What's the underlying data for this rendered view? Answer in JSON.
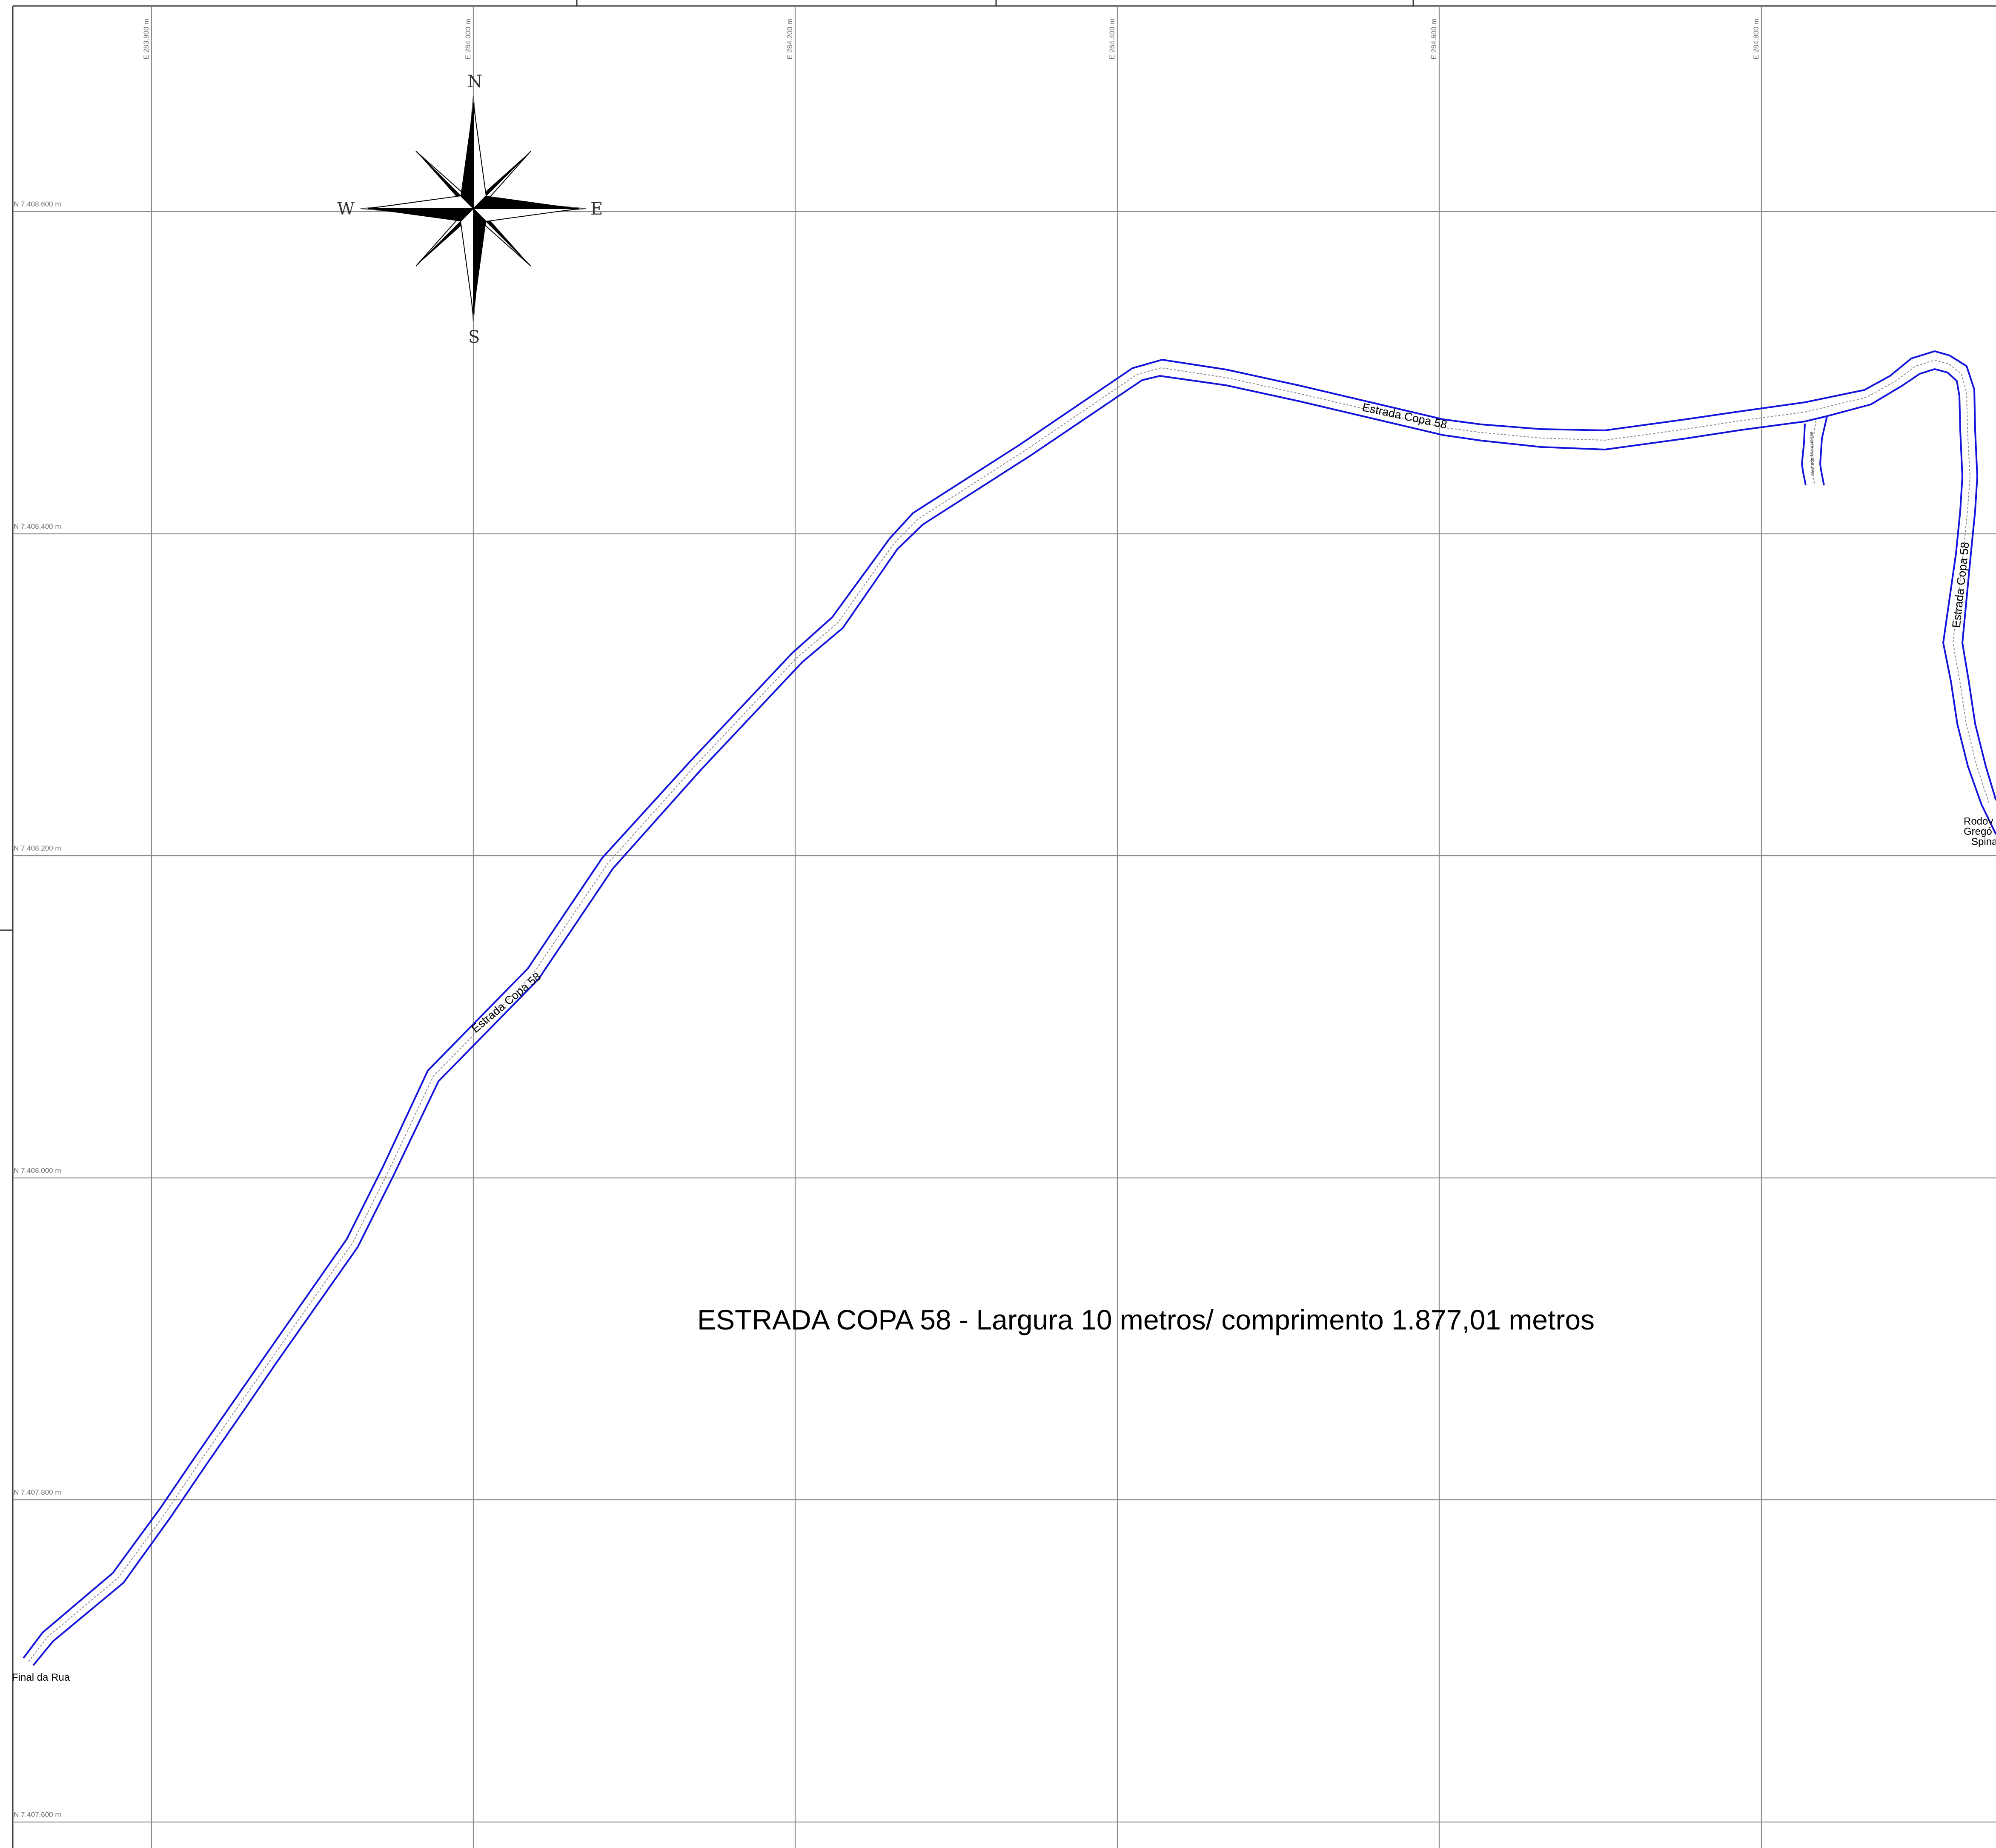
{
  "map": {
    "title": "ESTRADA COPA 58 - Largura 10 metros/ comprimento 1.877,01 metros",
    "easting_labels": [
      "E 283.800 m",
      "E 284.000 m",
      "E 284.200 m",
      "E 284.400 m",
      "E 284.600 m",
      "E 284.800 m"
    ],
    "northing_labels": [
      "N 7.408.600 m",
      "N 7.408.400 m",
      "N 7.408.200 m",
      "N 7.408.000 m",
      "N 7.407.800 m",
      "N 7.407.600 m"
    ],
    "compass": {
      "north": "N",
      "south": "S",
      "east": "E",
      "west": "W"
    },
    "road_labels": {
      "diagonal": "Estrada Copa 58",
      "top": "Estrada Copa 58",
      "right": "Estrada Copa 58",
      "side_street": "Alameda Mangueiras"
    },
    "places": {
      "end_of_road": "Final da Rua",
      "highway": [
        "Rodov",
        "Gregó",
        "Spina"
      ]
    },
    "colors": {
      "road_edge": "#1414dc",
      "grid": "#8c8c8c",
      "compass_fill": "#000000"
    }
  }
}
